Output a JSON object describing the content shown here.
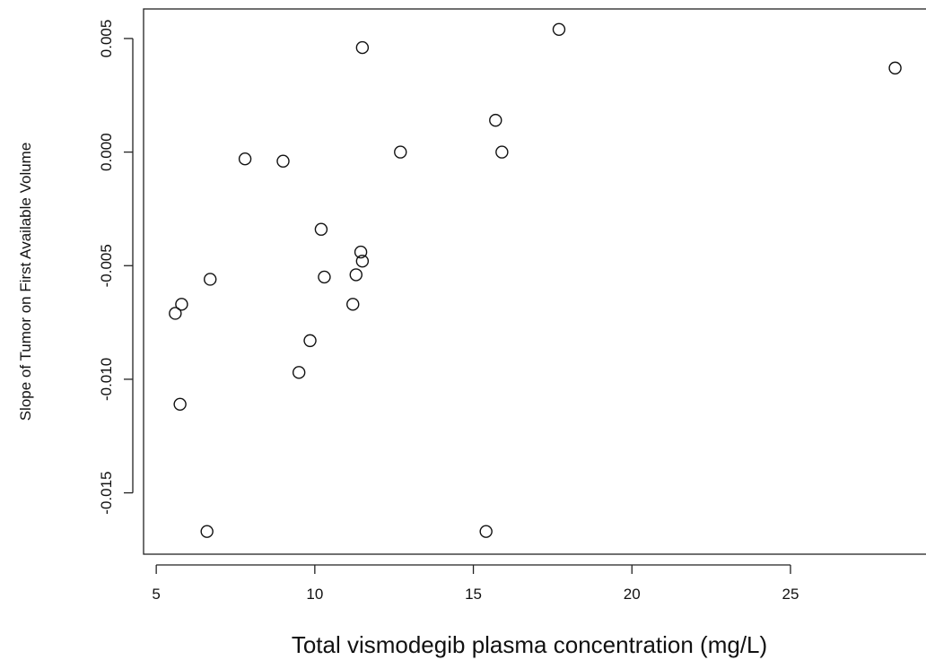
{
  "chart_data": {
    "type": "scatter",
    "title": "",
    "xlabel": "Total vismodegib plasma concentration (mg/L)",
    "ylabel": "Slope of Tumor on First Available Volume",
    "xlim": [
      4.6,
      29.5
    ],
    "ylim": [
      -0.0177,
      0.0063
    ],
    "x_ticks": [
      5,
      10,
      15,
      20,
      25
    ],
    "x_tick_labels": [
      "5",
      "10",
      "15",
      "20",
      "25"
    ],
    "y_ticks": [
      -0.015,
      -0.01,
      -0.005,
      0.0,
      0.005
    ],
    "y_tick_labels": [
      "-0.015",
      "-0.010",
      "-0.005",
      "0.000",
      "0.005"
    ],
    "grid": false,
    "marker": "open-circle",
    "series": [
      {
        "points": [
          {
            "x": 5.6,
            "y": -0.0071
          },
          {
            "x": 5.8,
            "y": -0.0067
          },
          {
            "x": 5.75,
            "y": -0.0111
          },
          {
            "x": 6.6,
            "y": -0.0167
          },
          {
            "x": 6.7,
            "y": -0.0056
          },
          {
            "x": 7.8,
            "y": -0.0003
          },
          {
            "x": 9.0,
            "y": -0.0004
          },
          {
            "x": 9.5,
            "y": -0.0097
          },
          {
            "x": 9.85,
            "y": -0.0083
          },
          {
            "x": 10.2,
            "y": -0.0034
          },
          {
            "x": 10.3,
            "y": -0.0055
          },
          {
            "x": 11.2,
            "y": -0.0067
          },
          {
            "x": 11.3,
            "y": -0.0054
          },
          {
            "x": 11.45,
            "y": -0.0044
          },
          {
            "x": 11.5,
            "y": -0.0048
          },
          {
            "x": 11.5,
            "y": 0.0046
          },
          {
            "x": 12.7,
            "y": 0.0
          },
          {
            "x": 15.4,
            "y": -0.0167
          },
          {
            "x": 15.7,
            "y": 0.0014
          },
          {
            "x": 15.9,
            "y": 0.0
          },
          {
            "x": 17.7,
            "y": 0.0054
          },
          {
            "x": 28.3,
            "y": 0.0037
          }
        ]
      }
    ]
  }
}
